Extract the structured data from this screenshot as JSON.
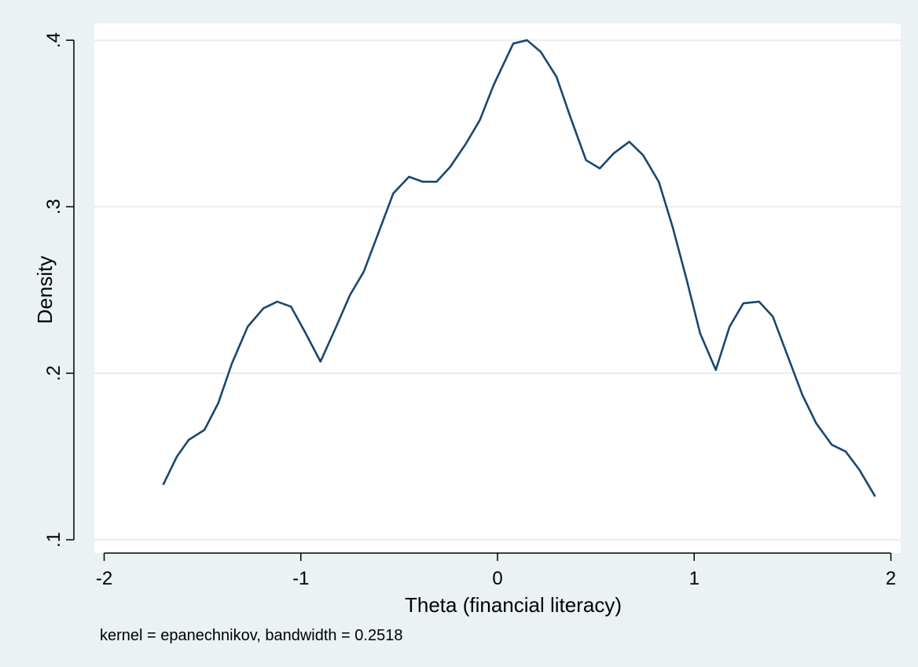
{
  "chart_data": {
    "type": "line",
    "title": "",
    "xlabel": "Theta (financial literacy)",
    "ylabel": "Density",
    "note": "kernel = epanechnikov, bandwidth = 0.2518",
    "xlim": [
      -2.05,
      2.05
    ],
    "ylim": [
      0.092,
      0.41
    ],
    "xticks": [
      -2,
      -1,
      0,
      1,
      2
    ],
    "xtick_labels": [
      "-2",
      "-1",
      "0",
      "1",
      "2"
    ],
    "yticks": [
      0.1,
      0.2,
      0.3,
      0.4
    ],
    "ytick_labels": [
      ".1",
      ".2",
      ".3",
      ".4"
    ],
    "grid": true,
    "colors": {
      "background": "#eaf2f3",
      "plot_area": "#ffffff",
      "gridline": "#e6eef0",
      "line": "#1a476f",
      "axis": "#000000"
    },
    "series": [
      {
        "x": [
          -1.7,
          -1.63,
          -1.57,
          -1.49,
          -1.42,
          -1.35,
          -1.27,
          -1.19,
          -1.12,
          -1.05,
          -0.98,
          -0.9,
          -0.82,
          -0.75,
          -0.68,
          -0.6,
          -0.53,
          -0.45,
          -0.38,
          -0.31,
          -0.24,
          -0.16,
          -0.09,
          -0.02,
          0.08,
          0.15,
          0.22,
          0.3,
          0.37,
          0.45,
          0.52,
          0.59,
          0.67,
          0.74,
          0.82,
          0.89,
          0.96,
          1.03,
          1.11,
          1.18,
          1.25,
          1.33,
          1.4,
          1.47,
          1.55,
          1.62,
          1.7,
          1.77,
          1.84,
          1.92
        ],
        "values": [
          0.133,
          0.15,
          0.16,
          0.166,
          0.182,
          0.206,
          0.228,
          0.239,
          0.243,
          0.24,
          0.225,
          0.207,
          0.228,
          0.247,
          0.261,
          0.286,
          0.308,
          0.318,
          0.315,
          0.315,
          0.324,
          0.338,
          0.352,
          0.373,
          0.398,
          0.4,
          0.393,
          0.378,
          0.354,
          0.328,
          0.323,
          0.332,
          0.339,
          0.331,
          0.315,
          0.288,
          0.257,
          0.224,
          0.202,
          0.228,
          0.242,
          0.243,
          0.234,
          0.212,
          0.187,
          0.17,
          0.157,
          0.153,
          0.142,
          0.126
        ]
      }
    ]
  }
}
